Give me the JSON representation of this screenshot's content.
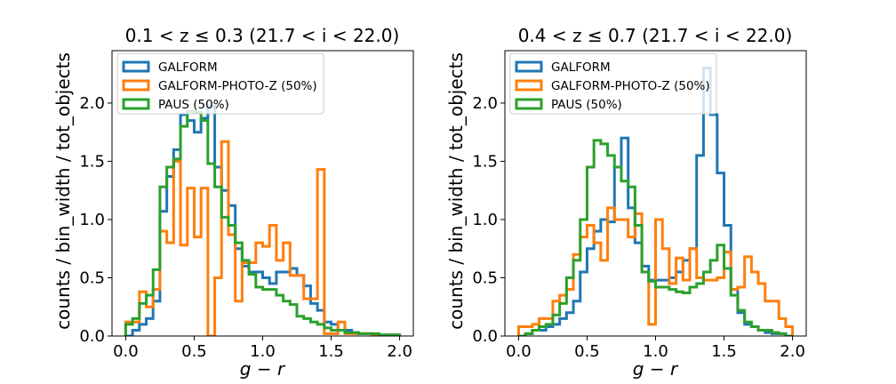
{
  "chart_data": [
    {
      "type": "histogram-step",
      "title": "0.1 < z ≤ 0.3  (21.7 < i < 22.0)",
      "xlabel": "g − r",
      "ylabel": "counts / bin_width / tot_objects",
      "xlim": [
        -0.1,
        2.1
      ],
      "ylim": [
        0,
        2.45
      ],
      "xticks": [
        0.0,
        0.5,
        1.0,
        1.5,
        2.0
      ],
      "xtick_labels": [
        "0.0",
        "0.5",
        "1.0",
        "1.5",
        "2.0"
      ],
      "yticks": [
        0.0,
        0.5,
        1.0,
        1.5,
        2.0
      ],
      "ytick_labels": [
        "0.0",
        "0.5",
        "1.0",
        "1.5",
        "2.0"
      ],
      "legend_position": "top-left",
      "bin_edges": [
        0.0,
        0.05,
        0.1,
        0.15,
        0.2,
        0.25,
        0.3,
        0.35,
        0.4,
        0.45,
        0.5,
        0.55,
        0.6,
        0.65,
        0.7,
        0.75,
        0.8,
        0.85,
        0.9,
        0.95,
        1.0,
        1.05,
        1.1,
        1.15,
        1.2,
        1.25,
        1.3,
        1.35,
        1.4,
        1.45,
        1.5,
        1.55,
        1.6,
        1.65,
        1.7,
        1.75,
        1.8,
        1.85,
        1.9,
        1.95,
        2.0
      ],
      "series": [
        {
          "name": "GALFORM",
          "color": "#1f77b4",
          "values": [
            0.0,
            0.05,
            0.1,
            0.15,
            0.3,
            1.07,
            1.37,
            1.6,
            1.9,
            1.85,
            1.75,
            1.87,
            1.97,
            1.45,
            1.25,
            1.12,
            0.75,
            0.6,
            0.55,
            0.55,
            0.5,
            0.45,
            0.55,
            0.55,
            0.58,
            0.52,
            0.43,
            0.28,
            0.22,
            0.12,
            0.1,
            0.05,
            0.05,
            0.03,
            0.02,
            0.02,
            0.01,
            0.01,
            0.01,
            0.01
          ]
        },
        {
          "name": "GALFORM-PHOTO-Z (50%)",
          "color": "#ff7f0e",
          "values": [
            0.12,
            0.12,
            0.38,
            0.25,
            0.4,
            0.9,
            0.8,
            1.5,
            0.78,
            1.27,
            0.85,
            1.27,
            0.0,
            0.5,
            1.67,
            0.87,
            0.3,
            0.63,
            0.63,
            0.8,
            0.77,
            0.95,
            0.65,
            0.8,
            0.52,
            0.52,
            0.32,
            0.32,
            1.43,
            0.02,
            0.02,
            0.12,
            0.02,
            0.02,
            0.02,
            0.02,
            0.0,
            0.0,
            0.0,
            0.0
          ]
        },
        {
          "name": "PAUS (50%)",
          "color": "#2ca02c",
          "values": [
            0.1,
            0.15,
            0.28,
            0.35,
            0.57,
            1.28,
            1.45,
            1.52,
            1.8,
            1.93,
            1.92,
            1.85,
            1.48,
            1.28,
            1.02,
            0.95,
            0.8,
            0.65,
            0.53,
            0.42,
            0.4,
            0.4,
            0.35,
            0.3,
            0.27,
            0.17,
            0.15,
            0.12,
            0.1,
            0.07,
            0.05,
            0.05,
            0.03,
            0.03,
            0.02,
            0.02,
            0.02,
            0.01,
            0.01,
            0.01
          ]
        }
      ]
    },
    {
      "type": "histogram-step",
      "title": "0.4 < z ≤ 0.7  (21.7 < i < 22.0)",
      "xlabel": "g − r",
      "ylabel": "counts / bin_width / tot_objects",
      "xlim": [
        -0.1,
        2.1
      ],
      "ylim": [
        0,
        2.45
      ],
      "xticks": [
        0.0,
        0.5,
        1.0,
        1.5,
        2.0
      ],
      "xtick_labels": [
        "0.0",
        "0.5",
        "1.0",
        "1.5",
        "2.0"
      ],
      "yticks": [
        0.0,
        0.5,
        1.0,
        1.5,
        2.0
      ],
      "ytick_labels": [
        "0.0",
        "0.5",
        "1.0",
        "1.5",
        "2.0"
      ],
      "legend_position": "top-left",
      "bin_edges": [
        0.0,
        0.05,
        0.1,
        0.15,
        0.2,
        0.25,
        0.3,
        0.35,
        0.4,
        0.45,
        0.5,
        0.55,
        0.6,
        0.65,
        0.7,
        0.75,
        0.8,
        0.85,
        0.9,
        0.95,
        1.0,
        1.05,
        1.1,
        1.15,
        1.2,
        1.25,
        1.3,
        1.35,
        1.4,
        1.45,
        1.5,
        1.55,
        1.6,
        1.65,
        1.7,
        1.75,
        1.8,
        1.85,
        1.9,
        1.95,
        2.0
      ],
      "series": [
        {
          "name": "GALFORM",
          "color": "#1f77b4",
          "values": [
            0.0,
            0.02,
            0.05,
            0.05,
            0.08,
            0.1,
            0.15,
            0.2,
            0.3,
            0.55,
            0.75,
            0.9,
            1.0,
            0.98,
            1.45,
            1.7,
            1.1,
            0.8,
            0.6,
            0.48,
            0.48,
            0.48,
            0.5,
            0.55,
            0.65,
            0.75,
            1.55,
            2.3,
            1.9,
            1.4,
            0.95,
            0.4,
            0.2,
            0.1,
            0.08,
            0.05,
            0.03,
            0.02,
            0.02,
            0.0
          ]
        },
        {
          "name": "GALFORM-PHOTO-Z (50%)",
          "color": "#ff7f0e",
          "values": [
            0.08,
            0.08,
            0.1,
            0.15,
            0.15,
            0.3,
            0.35,
            0.4,
            0.7,
            0.85,
            0.95,
            0.8,
            0.65,
            1.1,
            1.0,
            1.0,
            0.85,
            1.05,
            0.55,
            0.1,
            1.0,
            0.75,
            0.45,
            0.67,
            0.48,
            0.75,
            0.5,
            0.48,
            0.48,
            0.5,
            0.72,
            0.4,
            0.42,
            0.68,
            0.55,
            0.45,
            0.3,
            0.3,
            0.15,
            0.08
          ]
        },
        {
          "name": "PAUS (50%)",
          "color": "#2ca02c",
          "values": [
            0.0,
            0.02,
            0.05,
            0.08,
            0.1,
            0.18,
            0.28,
            0.5,
            0.65,
            1.0,
            1.45,
            1.68,
            1.65,
            1.55,
            1.45,
            1.33,
            1.28,
            0.95,
            0.55,
            0.47,
            0.42,
            0.42,
            0.4,
            0.38,
            0.37,
            0.42,
            0.45,
            0.55,
            0.65,
            0.78,
            0.58,
            0.35,
            0.22,
            0.12,
            0.08,
            0.05,
            0.05,
            0.03,
            0.02,
            0.0
          ]
        }
      ]
    }
  ]
}
